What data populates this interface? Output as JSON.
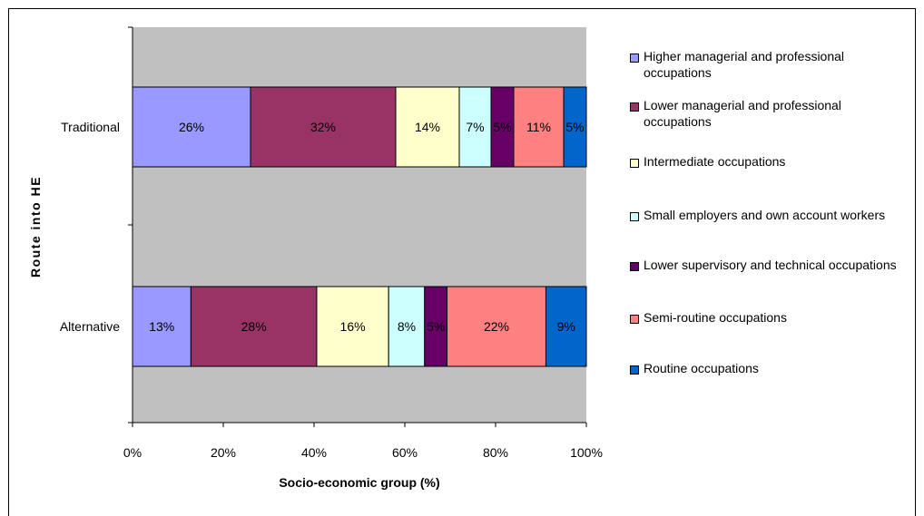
{
  "chart_data": {
    "type": "bar",
    "orientation": "horizontal",
    "stacked": true,
    "normalized_percent": true,
    "categories": [
      "Traditional",
      "Alternative"
    ],
    "series": [
      {
        "name": "Higher managerial and professional occupations",
        "color": "#9999ff",
        "values": [
          26,
          13
        ],
        "labels": [
          "26%",
          "13%"
        ]
      },
      {
        "name": "Lower managerial and professional occupations",
        "color": "#993366",
        "values": [
          32,
          28
        ],
        "labels": [
          "32%",
          "28%"
        ]
      },
      {
        "name": "Intermediate occupations",
        "color": "#ffffcc",
        "values": [
          14,
          16
        ],
        "labels": [
          "14%",
          "16%"
        ]
      },
      {
        "name": "Small employers and own account workers",
        "color": "#ccffff",
        "values": [
          7,
          8
        ],
        "labels": [
          "7%",
          "8%"
        ]
      },
      {
        "name": "Lower supervisory and technical occupations",
        "color": "#660066",
        "values": [
          5,
          5
        ],
        "labels": [
          "5%",
          "5%"
        ]
      },
      {
        "name": "Semi-routine occupations",
        "color": "#ff8080",
        "values": [
          11,
          22
        ],
        "labels": [
          "11%",
          "22%"
        ]
      },
      {
        "name": "Routine occupations",
        "color": "#0066cc",
        "values": [
          5,
          9
        ],
        "labels": [
          "5%",
          "9%"
        ]
      }
    ],
    "xlabel": "Socio-economic group (%)",
    "ylabel": "Route into HE",
    "xlim": [
      0,
      100
    ],
    "x_ticks": [
      "0%",
      "20%",
      "40%",
      "60%",
      "80%",
      "100%"
    ],
    "plot_background": "#c0c0c0",
    "grid": false,
    "legend_position": "right"
  }
}
